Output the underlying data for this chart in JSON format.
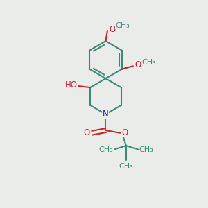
{
  "bg_color": "#eaece9",
  "bond_color": "#3a8a7a",
  "O_color": "#cc2222",
  "N_color": "#2222cc",
  "line_width": 1.5,
  "font_size": 8.5,
  "figsize": [
    3.0,
    3.0
  ],
  "dpi": 100,
  "xlim": [
    0,
    10
  ],
  "ylim": [
    -1,
    11
  ]
}
